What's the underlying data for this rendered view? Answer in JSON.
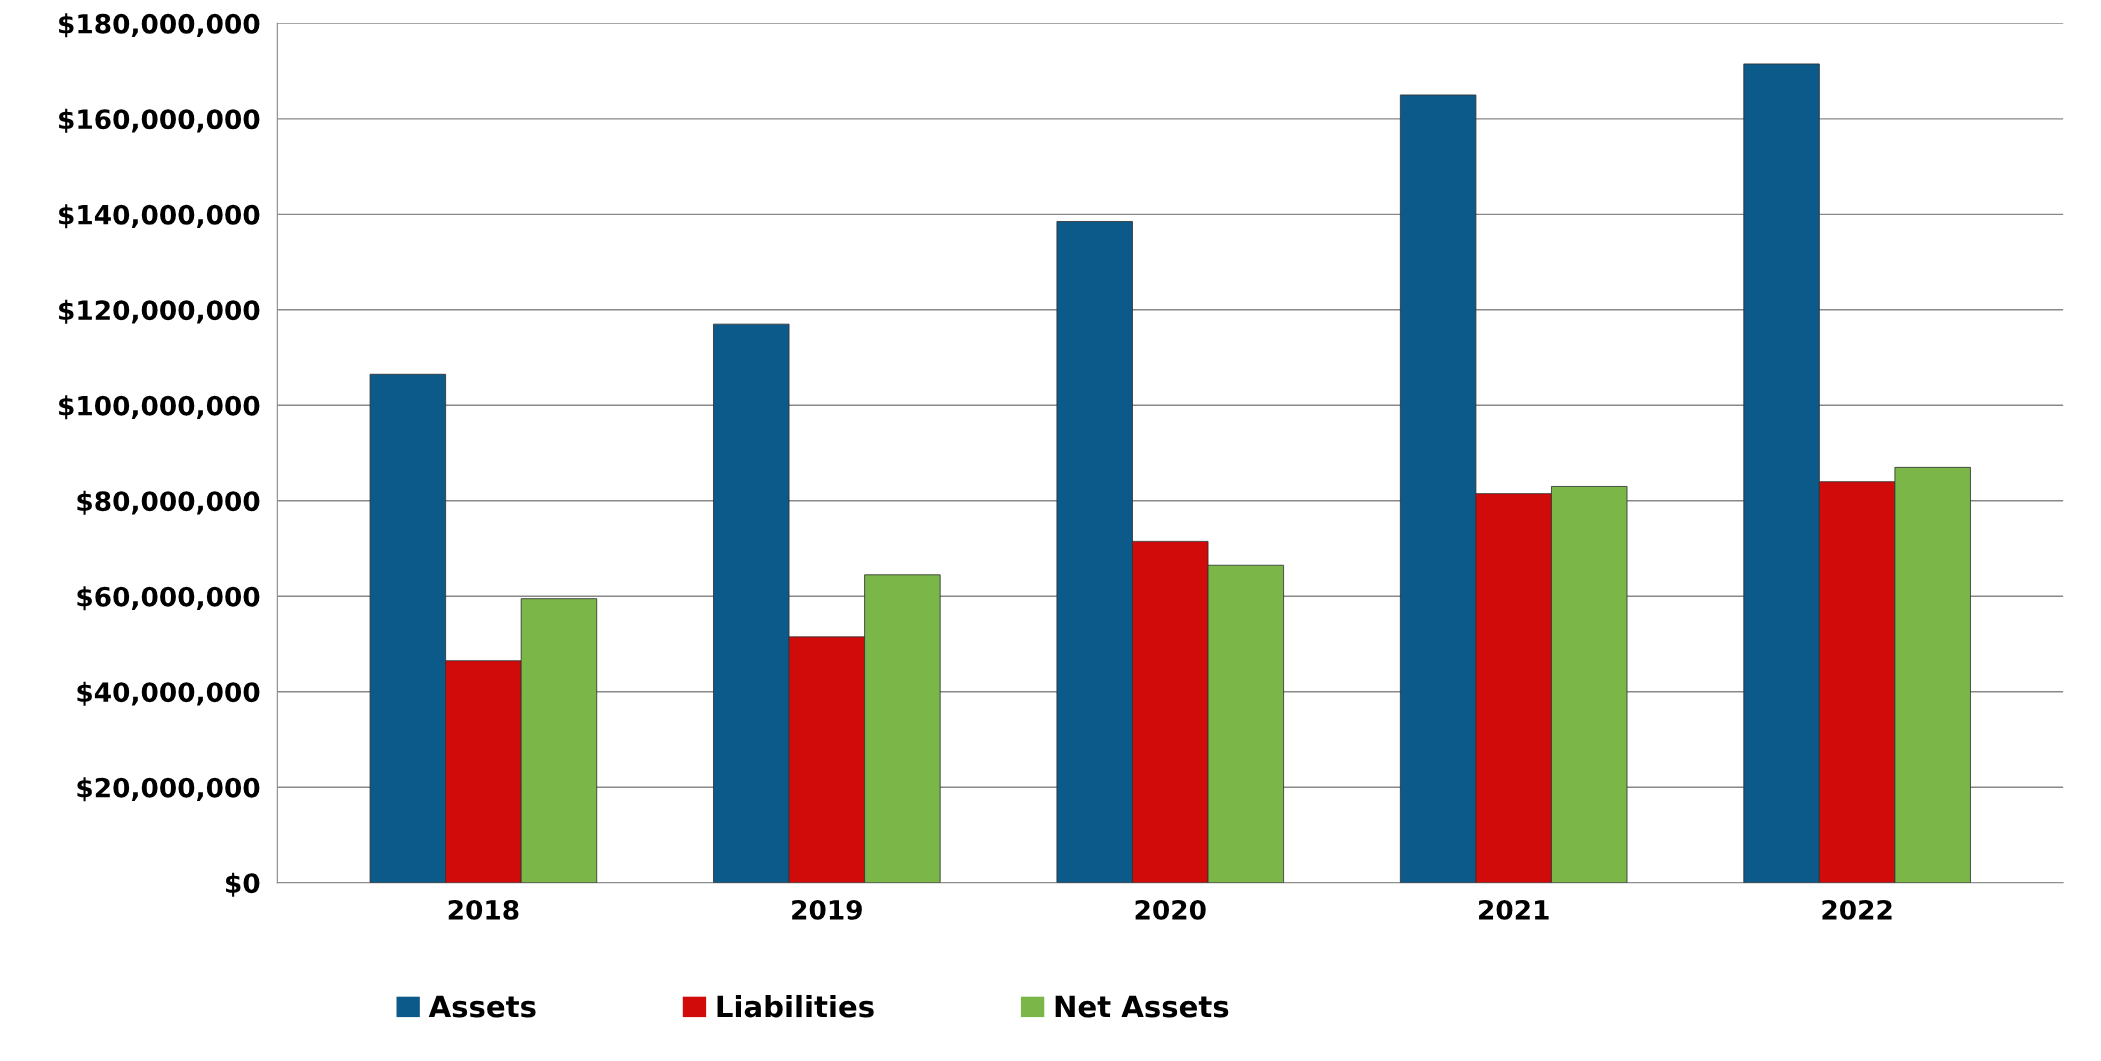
{
  "chart_data": {
    "type": "bar",
    "categories": [
      "2018",
      "2019",
      "2020",
      "2021",
      "2022"
    ],
    "series": [
      {
        "name": "Assets",
        "color": "#0b5a8a",
        "values": [
          106500000,
          117000000,
          138500000,
          165000000,
          171500000
        ]
      },
      {
        "name": "Liabilities",
        "color": "#d10a0a",
        "values": [
          46500000,
          51500000,
          71500000,
          81500000,
          84000000
        ]
      },
      {
        "name": "Net Assets",
        "color": "#7ab648",
        "values": [
          59500000,
          64500000,
          66500000,
          83000000,
          87000000
        ]
      }
    ],
    "ylim": [
      0,
      180000000
    ],
    "yticks": [
      {
        "value": 0,
        "label": "$0"
      },
      {
        "value": 20000000,
        "label": "$20,000,000"
      },
      {
        "value": 40000000,
        "label": "$40,000,000"
      },
      {
        "value": 60000000,
        "label": "$60,000,000"
      },
      {
        "value": 80000000,
        "label": "$80,000,000"
      },
      {
        "value": 100000000,
        "label": "$100,000,000"
      },
      {
        "value": 120000000,
        "label": "$120,000,000"
      },
      {
        "value": 140000000,
        "label": "$140,000,000"
      },
      {
        "value": 160000000,
        "label": "$160,000,000"
      },
      {
        "value": 180000000,
        "label": "$180,000,000"
      }
    ],
    "grid": "y",
    "legend": "bottom"
  }
}
